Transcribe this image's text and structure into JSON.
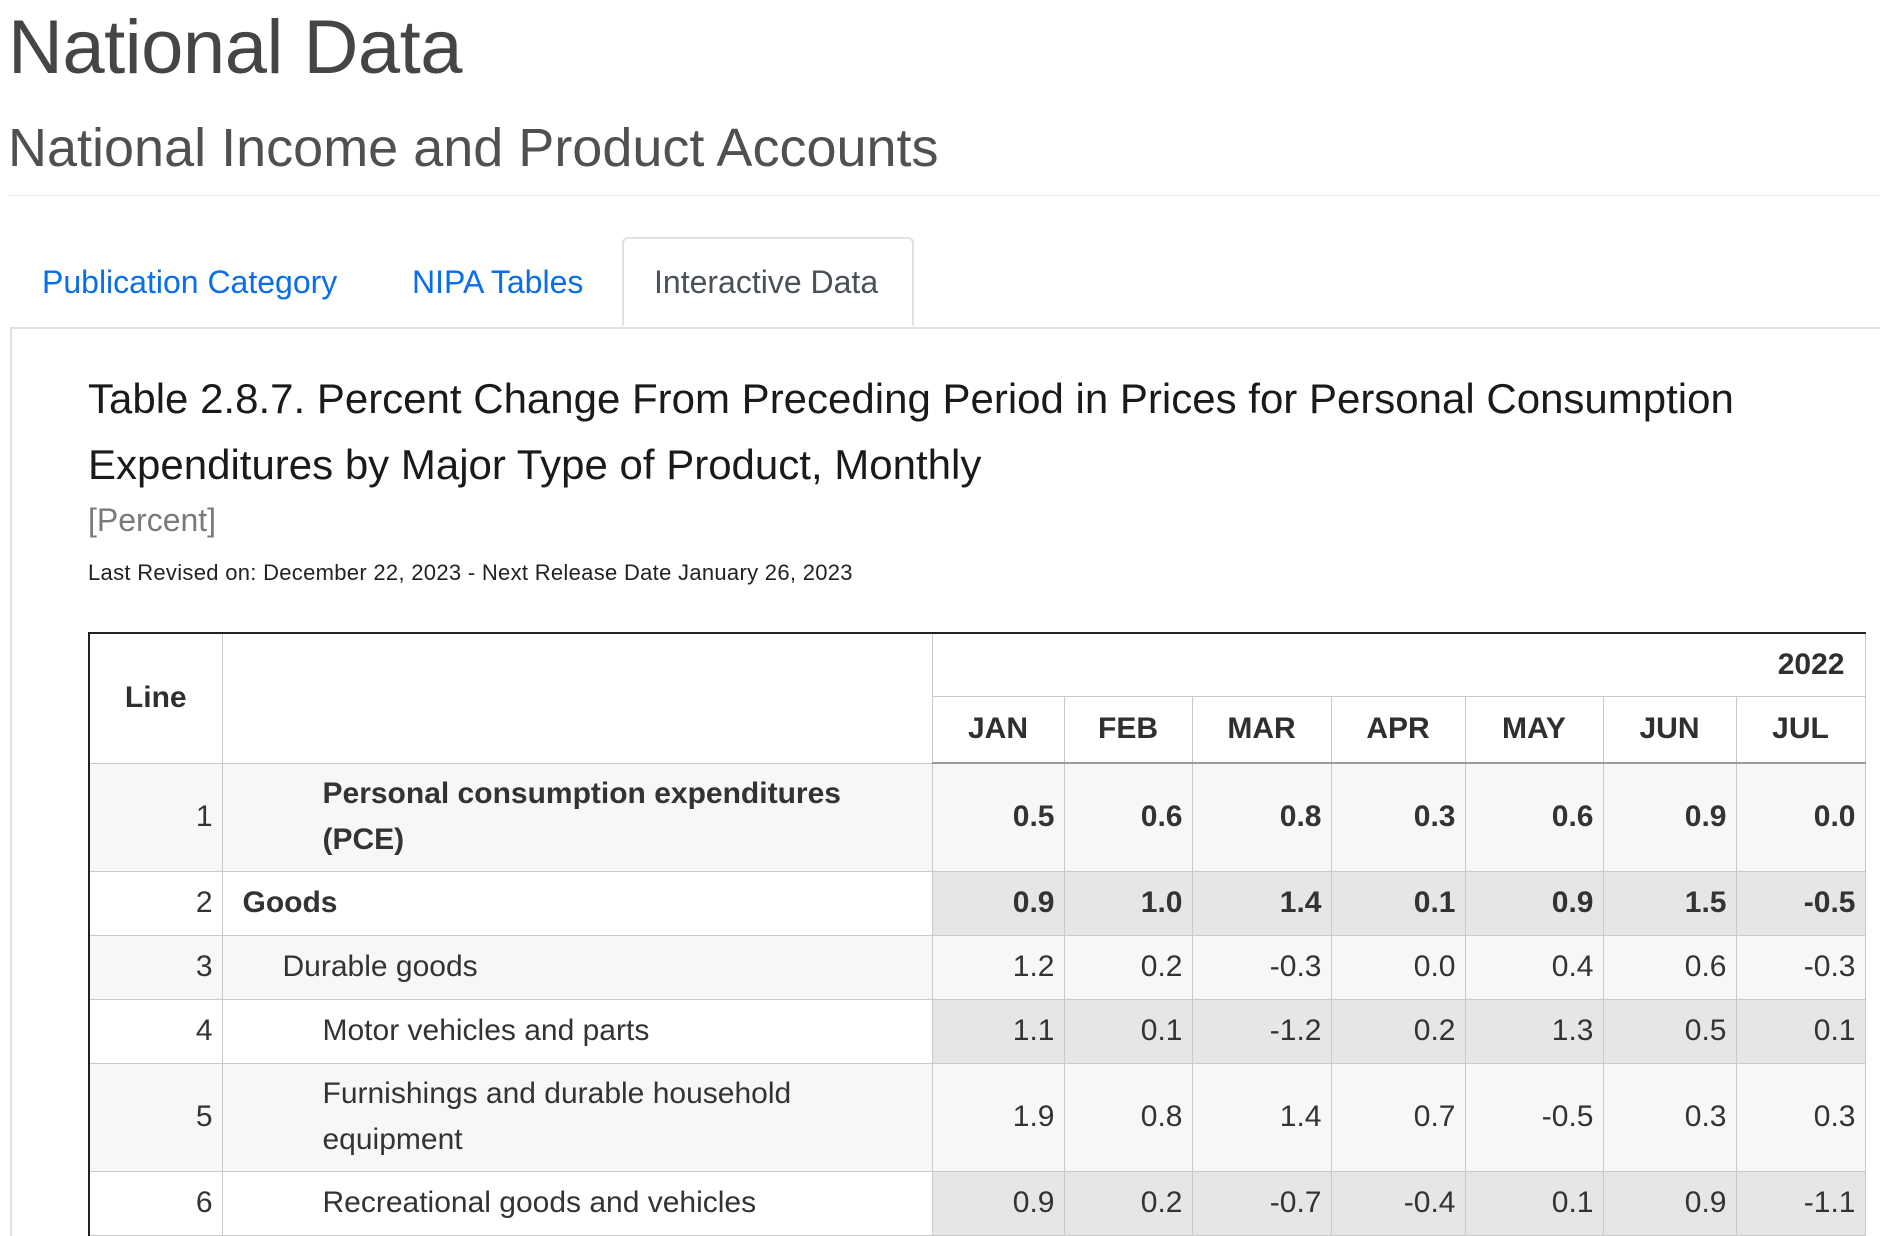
{
  "header": {
    "title": "National Data",
    "subtitle": "National Income and Product Accounts"
  },
  "tabs": [
    {
      "label": "Publication Category",
      "active": false
    },
    {
      "label": "NIPA Tables",
      "active": false
    },
    {
      "label": "Interactive Data",
      "active": true
    }
  ],
  "table": {
    "title": "Table 2.8.7. Percent Change From Preceding Period in Prices for Personal Consumption Expenditures by Major Type of Product, Monthly",
    "unit": "[Percent]",
    "revised": "Last Revised on: December 22, 2023 - Next Release Date January 26, 2023",
    "line_header": "Line",
    "year": "2022",
    "months": [
      "JAN",
      "FEB",
      "MAR",
      "APR",
      "MAY",
      "JUN",
      "JUL"
    ],
    "rows": [
      {
        "line": "1",
        "label": "Personal consumption expenditures (PCE)",
        "bold": true,
        "indent": 2,
        "values": [
          "0.5",
          "0.6",
          "0.8",
          "0.3",
          "0.6",
          "0.9",
          "0.0"
        ]
      },
      {
        "line": "2",
        "label": "Goods",
        "bold": true,
        "indent": 0,
        "values": [
          "0.9",
          "1.0",
          "1.4",
          "0.1",
          "0.9",
          "1.5",
          "-0.5"
        ]
      },
      {
        "line": "3",
        "label": "Durable goods",
        "bold": false,
        "indent": 1,
        "values": [
          "1.2",
          "0.2",
          "-0.3",
          "0.0",
          "0.4",
          "0.6",
          "-0.3"
        ]
      },
      {
        "line": "4",
        "label": "Motor vehicles and parts",
        "bold": false,
        "indent": 2,
        "values": [
          "1.1",
          "0.1",
          "-1.2",
          "0.2",
          "1.3",
          "0.5",
          "0.1"
        ]
      },
      {
        "line": "5",
        "label": "Furnishings and durable household equipment",
        "bold": false,
        "indent": 2,
        "values": [
          "1.9",
          "0.8",
          "1.4",
          "0.7",
          "-0.5",
          "0.3",
          "0.3"
        ]
      },
      {
        "line": "6",
        "label": "Recreational goods and vehicles",
        "bold": false,
        "indent": 2,
        "values": [
          "0.9",
          "0.2",
          "-0.7",
          "-0.4",
          "0.1",
          "0.9",
          "-1.1"
        ]
      }
    ]
  }
}
